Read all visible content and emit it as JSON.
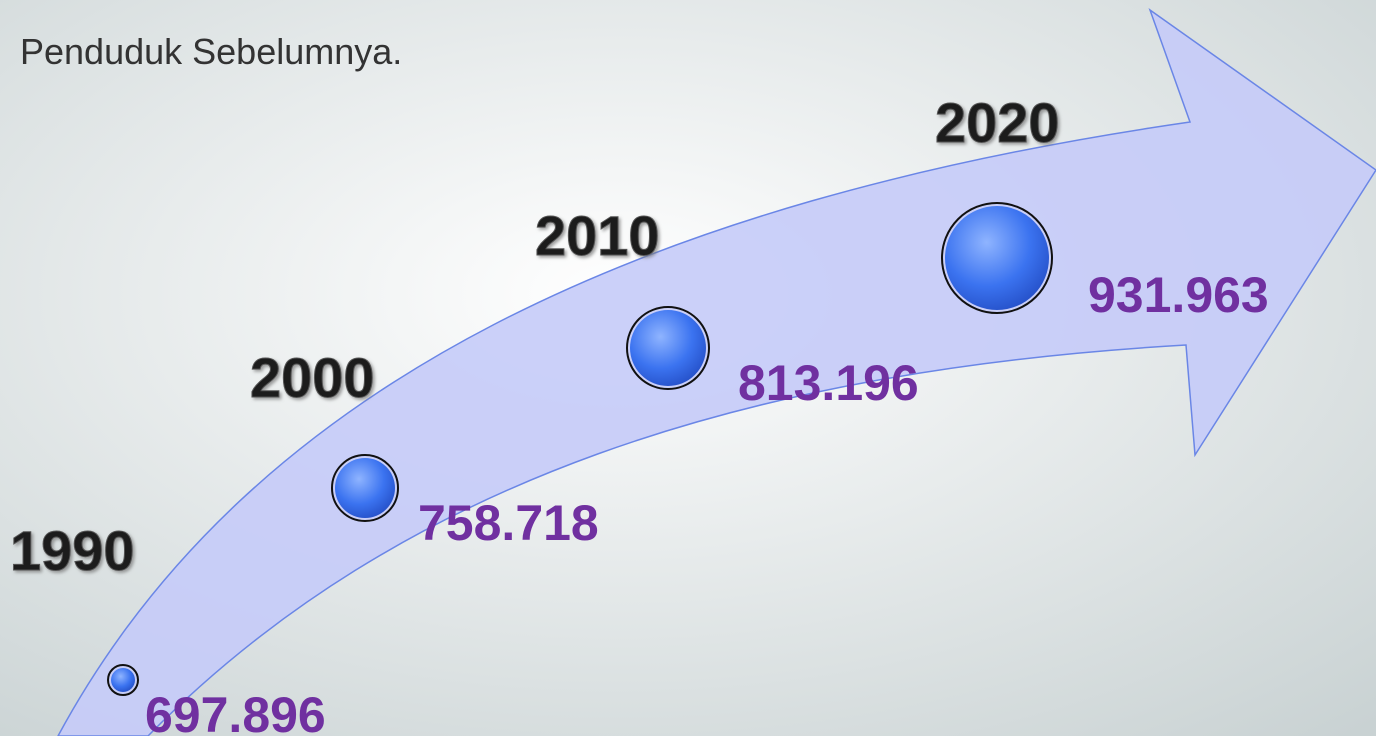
{
  "header": {
    "title": "Penduduk Sebelumnya."
  },
  "nodes": [
    {
      "year": "1990",
      "value": "697.896"
    },
    {
      "year": "2000",
      "value": "758.718"
    },
    {
      "year": "2010",
      "value": "813.196"
    },
    {
      "year": "2020",
      "value": "931.963"
    }
  ]
}
